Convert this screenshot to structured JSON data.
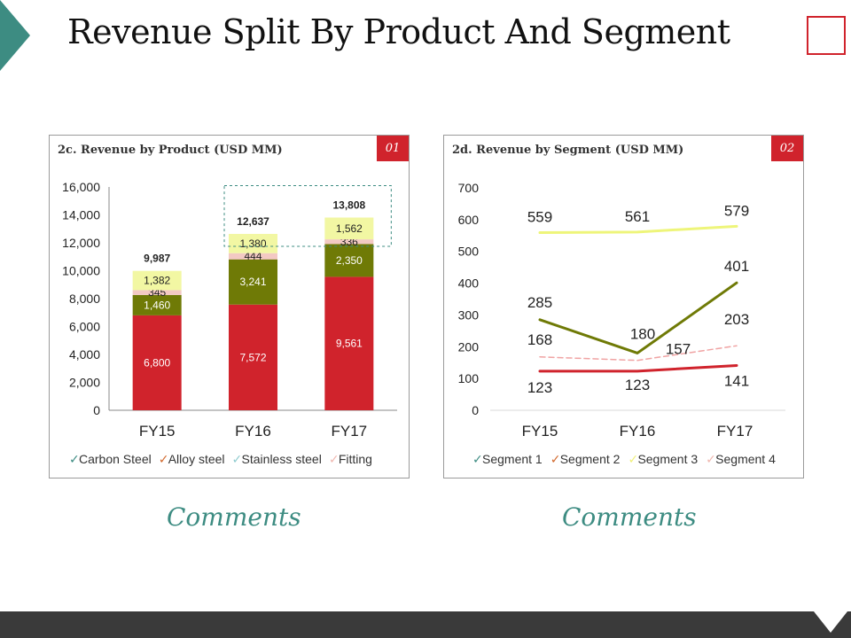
{
  "page": {
    "title": "Revenue Split By Product And Segment"
  },
  "colors": {
    "teal": "#3d8c82",
    "red": "#d0232c",
    "olive": "#6f7a06",
    "yellow": "#f2f7a3",
    "pink": "#f3c9c3",
    "dark_footer": "#3a3a3a"
  },
  "panels": {
    "left": {
      "title": "2c. Revenue by Product (USD MM)",
      "number": "01",
      "comments": "Comments"
    },
    "right": {
      "title": "2d. Revenue by Segment (USD MM)",
      "number": "02",
      "comments": "Comments"
    }
  },
  "chart_data": [
    {
      "type": "bar",
      "stacked": true,
      "title": "2c. Revenue by Product (USD MM)",
      "categories": [
        "FY15",
        "FY16",
        "FY17"
      ],
      "ylim": [
        0,
        16000
      ],
      "yticks": [
        "0",
        "2,000",
        "4,000",
        "6,000",
        "8,000",
        "10,000",
        "12,000",
        "14,000",
        "16,000"
      ],
      "series": [
        {
          "name": "Carbon Steel",
          "color": "#d0232c",
          "values": [
            6800,
            7572,
            9561
          ],
          "labels": [
            "6,800",
            "7,572",
            "9,561"
          ]
        },
        {
          "name": "Alloy steel",
          "color": "#6f7a06",
          "values": [
            1460,
            3241,
            2350
          ],
          "labels": [
            "1,460",
            "3,241",
            "2,350"
          ]
        },
        {
          "name": "Stainless steel",
          "color": "#f3c9c3",
          "values": [
            345,
            444,
            336
          ],
          "labels": [
            "345",
            "444",
            "336"
          ]
        },
        {
          "name": "Fitting",
          "color": "#f2f7a3",
          "values": [
            1382,
            1380,
            1562
          ],
          "labels": [
            "1,382",
            "1,380",
            "1,562"
          ]
        }
      ],
      "totals": [
        "9,987",
        "12,637",
        "13,808"
      ],
      "legend": [
        {
          "label": "Carbon Steel",
          "color": "#3d8c82"
        },
        {
          "label": "Alloy steel",
          "color": "#d26a2f"
        },
        {
          "label": "Stainless steel",
          "color": "#8fcbcf"
        },
        {
          "label": "Fitting",
          "color": "#f0b8b0"
        }
      ],
      "highlight": {
        "from_category": 1,
        "to_category": 2
      }
    },
    {
      "type": "line",
      "title": "2d. Revenue by Segment (USD MM)",
      "categories": [
        "FY15",
        "FY16",
        "FY17"
      ],
      "ylim": [
        0,
        700
      ],
      "yticks": [
        "0",
        "100",
        "200",
        "300",
        "400",
        "500",
        "600",
        "700"
      ],
      "series": [
        {
          "name": "Segment 1",
          "color": "#d0232c",
          "dashed": false,
          "values": [
            123,
            123,
            141
          ],
          "labels": [
            "123",
            "123",
            "141"
          ]
        },
        {
          "name": "Segment 2",
          "color": "#6f7a06",
          "dashed": false,
          "values": [
            285,
            180,
            401
          ],
          "labels": [
            "285",
            "180",
            "401"
          ]
        },
        {
          "name": "Segment 3",
          "color": "#eef57a",
          "dashed": false,
          "values": [
            559,
            561,
            579
          ],
          "labels": [
            "559",
            "561",
            "579"
          ]
        },
        {
          "name": "Segment 4",
          "color": "#f0a3a3",
          "dashed": true,
          "values": [
            168,
            157,
            203
          ],
          "labels": [
            "168",
            "157",
            "203"
          ]
        }
      ],
      "legend": [
        {
          "label": "Segment 1",
          "color": "#3d8c82"
        },
        {
          "label": "Segment 2",
          "color": "#d26a2f"
        },
        {
          "label": "Segment 3",
          "color": "#f0f07a"
        },
        {
          "label": "Segment 4",
          "color": "#f0b8b0"
        }
      ]
    }
  ]
}
